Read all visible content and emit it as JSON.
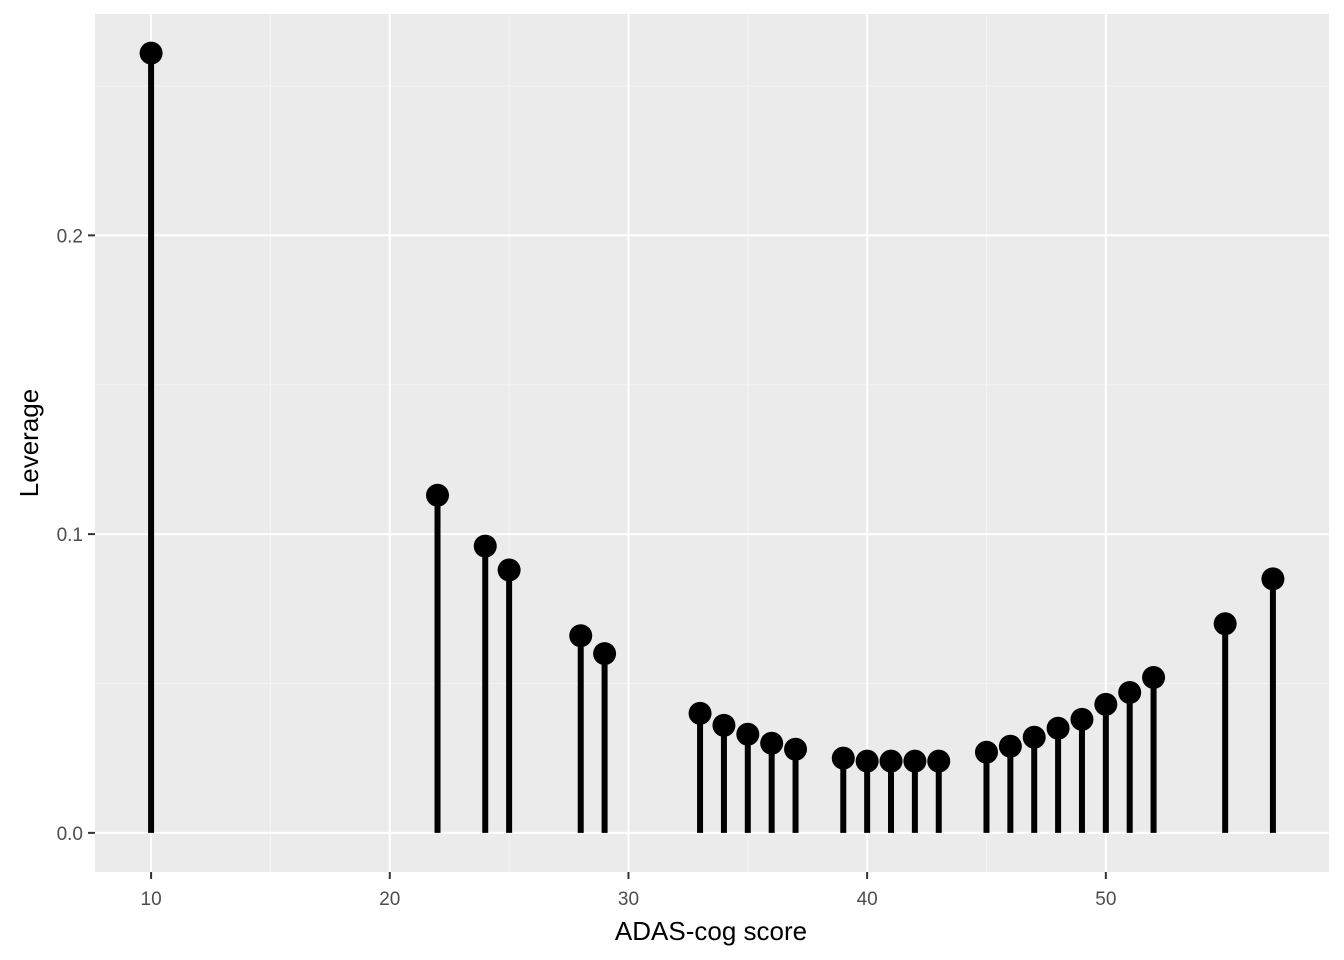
{
  "chart_data": {
    "type": "lollipop",
    "title": "",
    "xlabel": "ADAS-cog score",
    "ylabel": "Leverage",
    "xlim": [
      7.65,
      59.35
    ],
    "ylim": [
      -0.0131,
      0.2741
    ],
    "x_ticks": [
      10,
      20,
      30,
      40,
      50
    ],
    "x_tick_labels": [
      "10",
      "20",
      "30",
      "40",
      "50"
    ],
    "y_ticks": [
      0.0,
      0.1,
      0.2
    ],
    "y_tick_labels": [
      "0.0",
      "0.1",
      "0.2"
    ],
    "grid": true,
    "legend": "none",
    "colors": {
      "panel_background": "#ebebeb",
      "grid_major": "#ffffff",
      "grid_minor": "#f5f5f5",
      "mark": "#000000",
      "tick_text": "#4d4d4d",
      "tick_mark": "#333333",
      "axis_title": "#000000"
    },
    "points": [
      {
        "x": 10,
        "y": 0.261
      },
      {
        "x": 22,
        "y": 0.113
      },
      {
        "x": 24,
        "y": 0.096
      },
      {
        "x": 25,
        "y": 0.088
      },
      {
        "x": 28,
        "y": 0.066
      },
      {
        "x": 29,
        "y": 0.06
      },
      {
        "x": 33,
        "y": 0.04
      },
      {
        "x": 34,
        "y": 0.036
      },
      {
        "x": 35,
        "y": 0.033
      },
      {
        "x": 36,
        "y": 0.03
      },
      {
        "x": 37,
        "y": 0.028
      },
      {
        "x": 39,
        "y": 0.025
      },
      {
        "x": 40,
        "y": 0.024
      },
      {
        "x": 41,
        "y": 0.024
      },
      {
        "x": 42,
        "y": 0.024
      },
      {
        "x": 43,
        "y": 0.024
      },
      {
        "x": 45,
        "y": 0.027
      },
      {
        "x": 46,
        "y": 0.029
      },
      {
        "x": 47,
        "y": 0.032
      },
      {
        "x": 48,
        "y": 0.035
      },
      {
        "x": 49,
        "y": 0.038
      },
      {
        "x": 50,
        "y": 0.043
      },
      {
        "x": 51,
        "y": 0.047
      },
      {
        "x": 52,
        "y": 0.052
      },
      {
        "x": 55,
        "y": 0.07
      },
      {
        "x": 57,
        "y": 0.085
      }
    ]
  }
}
